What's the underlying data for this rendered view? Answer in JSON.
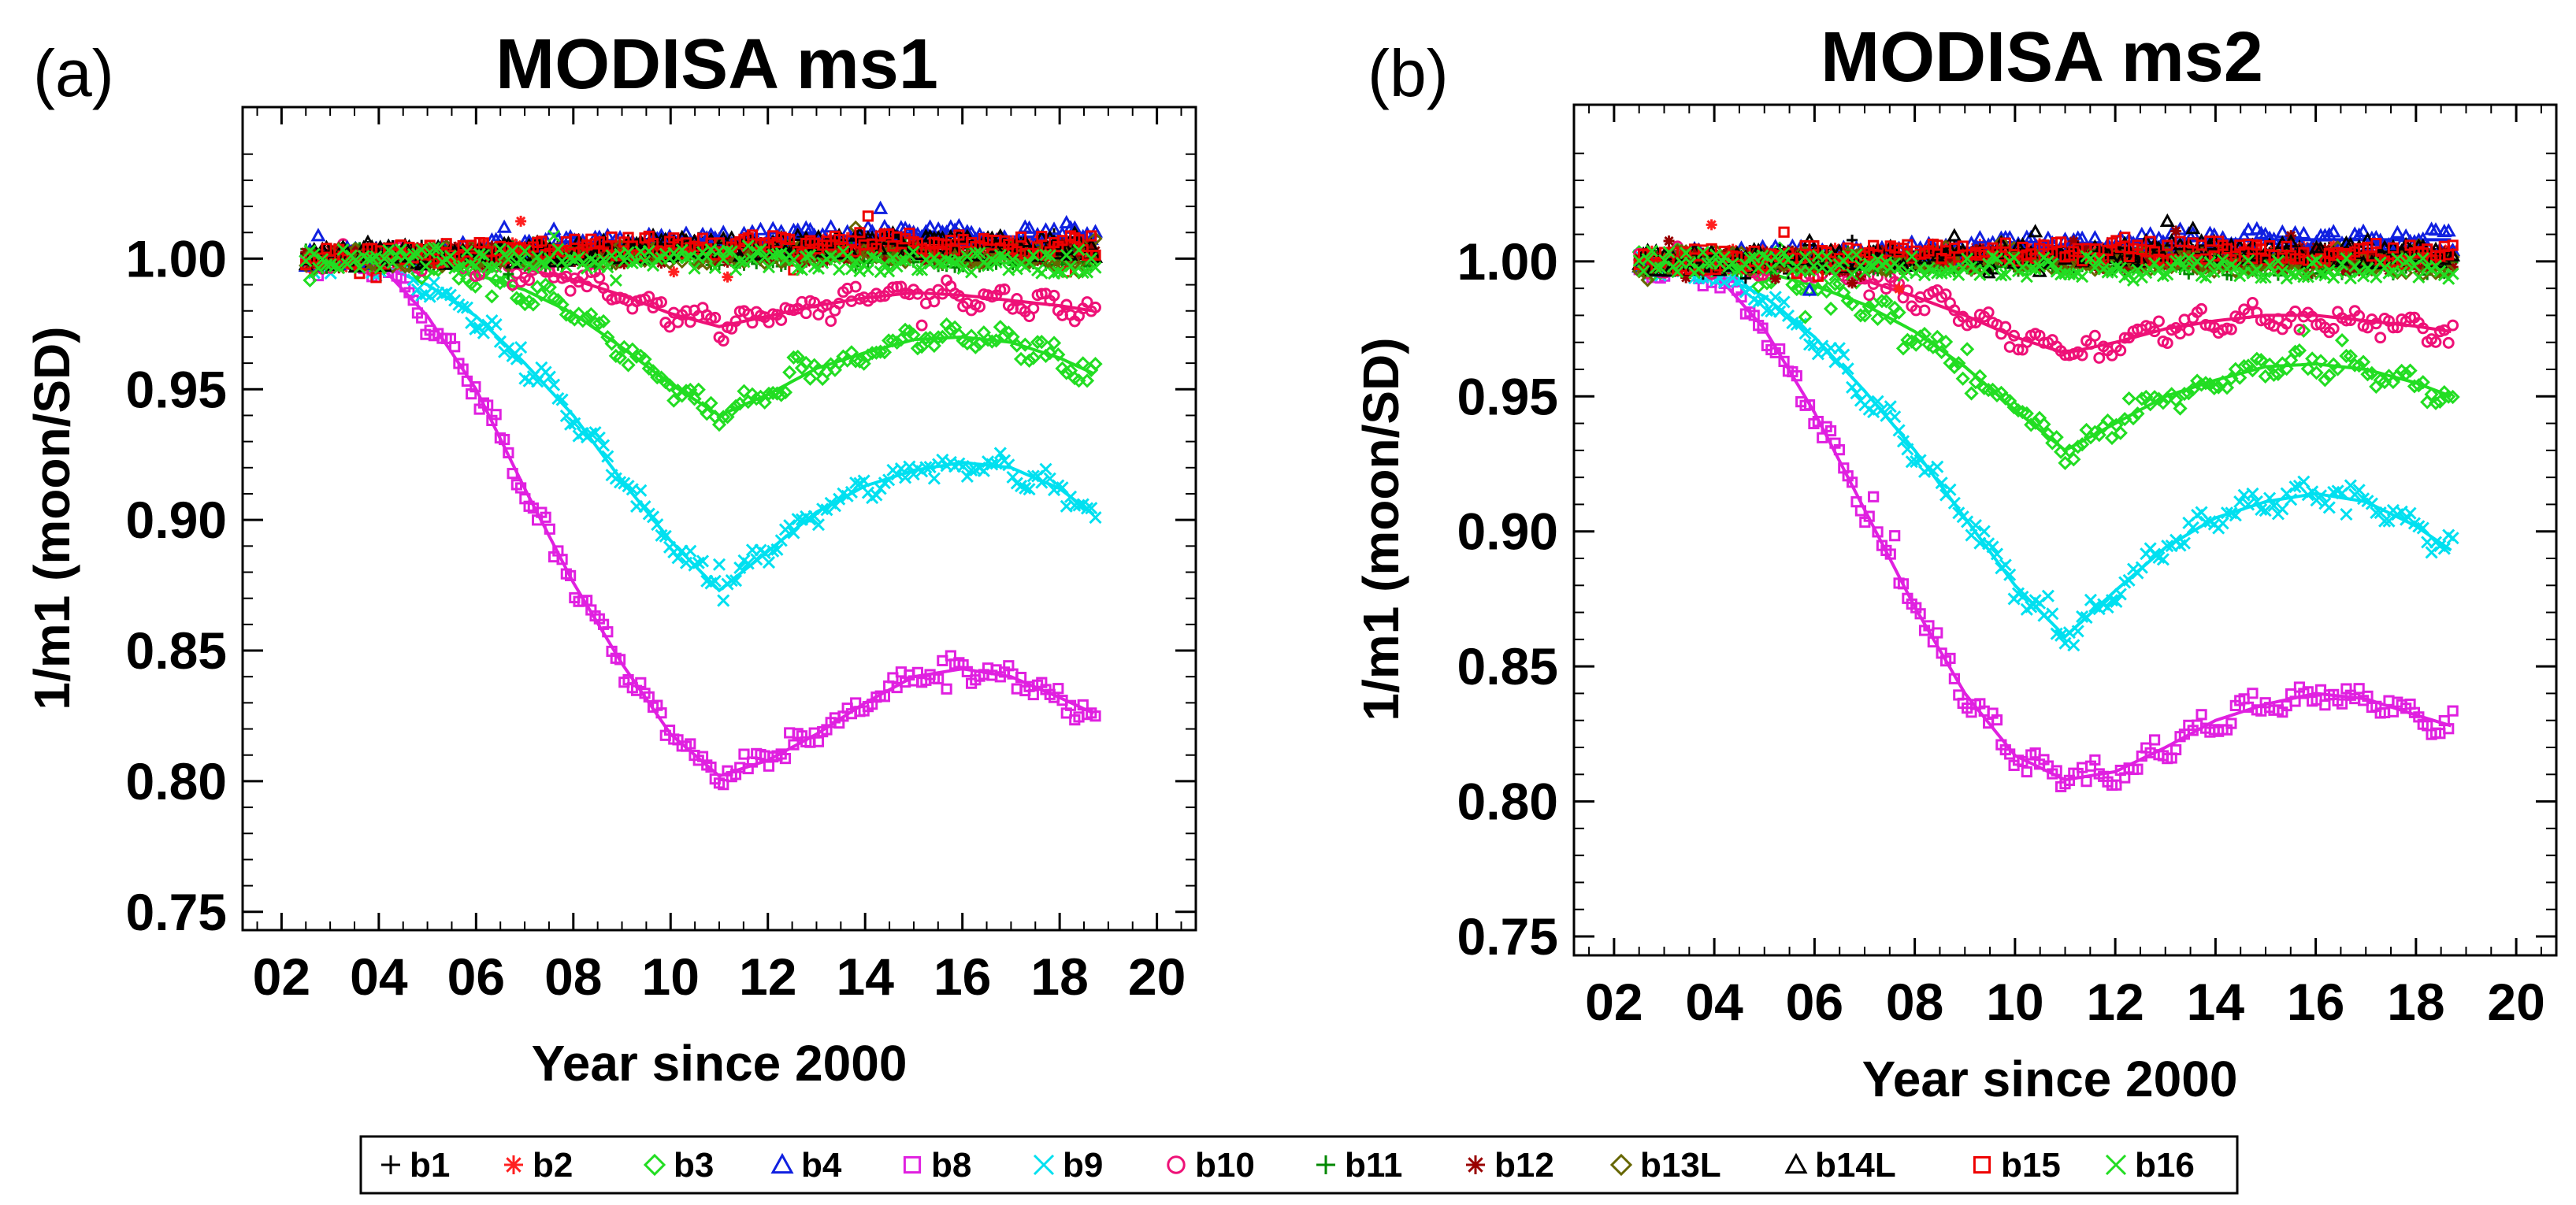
{
  "figure": {
    "panels": [
      "(a)",
      "(b)"
    ]
  },
  "chart_data": [
    {
      "type": "scatter",
      "title": "MODISA ms1",
      "panel_label": "(a)",
      "xlabel": "Year since 2000",
      "ylabel": "1/m1 (moon/SD)",
      "xlim": [
        1.2,
        20.8
      ],
      "ylim": [
        0.743,
        1.058
      ],
      "xticks": [
        2,
        4,
        6,
        8,
        10,
        12,
        14,
        16,
        18,
        20
      ],
      "xtick_labels": [
        "02",
        "04",
        "06",
        "08",
        "10",
        "12",
        "14",
        "16",
        "18",
        "20"
      ],
      "yticks": [
        0.75,
        0.8,
        0.85,
        0.9,
        0.95,
        1.0
      ],
      "ytick_labels": [
        "0.75",
        "0.80",
        "0.85",
        "0.90",
        "0.95",
        "1.00"
      ],
      "series": [
        {
          "name": "b8",
          "color": "#e020e0",
          "marker": "square",
          "x": [
            2.5,
            4,
            5,
            6,
            7,
            8,
            9,
            10,
            11,
            12,
            13,
            14,
            15,
            16,
            17,
            18,
            18.7
          ],
          "y": [
            0.998,
            0.998,
            0.978,
            0.95,
            0.912,
            0.876,
            0.845,
            0.818,
            0.802,
            0.808,
            0.818,
            0.83,
            0.84,
            0.843,
            0.84,
            0.832,
            0.826
          ]
        },
        {
          "name": "b9",
          "color": "#00e0f0",
          "marker": "x",
          "x": [
            2.5,
            4,
            5,
            6,
            7,
            8,
            9,
            10,
            11,
            12,
            13,
            14,
            15,
            16,
            17,
            18,
            18.7
          ],
          "y": [
            0.999,
            0.998,
            0.99,
            0.978,
            0.96,
            0.94,
            0.915,
            0.892,
            0.873,
            0.888,
            0.903,
            0.913,
            0.919,
            0.922,
            0.92,
            0.912,
            0.902
          ]
        },
        {
          "name": "b3",
          "color": "#22dd22",
          "marker": "diamond",
          "x": [
            2.5,
            4,
            5,
            6,
            7,
            8,
            9,
            10,
            11,
            12,
            13,
            14,
            15,
            16,
            17,
            18,
            18.7
          ],
          "y": [
            1.0,
            1.0,
            0.998,
            0.994,
            0.988,
            0.979,
            0.966,
            0.952,
            0.94,
            0.948,
            0.958,
            0.964,
            0.969,
            0.97,
            0.968,
            0.962,
            0.956
          ]
        },
        {
          "name": "b10",
          "color": "#ee1177",
          "marker": "circle",
          "x": [
            2.5,
            4,
            5,
            6,
            7,
            8,
            9,
            10,
            11,
            12,
            13,
            14,
            15,
            16,
            17,
            18,
            18.7
          ],
          "y": [
            1.0,
            1.001,
            1.0,
            0.999,
            0.996,
            0.992,
            0.986,
            0.979,
            0.974,
            0.978,
            0.982,
            0.985,
            0.987,
            0.986,
            0.984,
            0.982,
            0.98
          ]
        },
        {
          "name": "b1",
          "color": "#000000",
          "marker": "plus",
          "x": [
            2.5,
            6,
            10,
            14,
            18.7
          ],
          "y": [
            1.0,
            1.002,
            1.004,
            1.005,
            1.003
          ]
        },
        {
          "name": "b2",
          "color": "#ff2020",
          "marker": "asterisk",
          "x": [
            2.5,
            6,
            10,
            14,
            18.7
          ],
          "y": [
            1.0,
            1.002,
            1.004,
            1.005,
            1.004
          ]
        },
        {
          "name": "b4",
          "color": "#1020e0",
          "marker": "triangle",
          "x": [
            2.5,
            6,
            10,
            14,
            18.7
          ],
          "y": [
            1.0,
            1.003,
            1.006,
            1.009,
            1.008
          ]
        },
        {
          "name": "b11",
          "color": "#008800",
          "marker": "plus",
          "x": [
            2.5,
            6,
            10,
            14,
            18.7
          ],
          "y": [
            1.0,
            1.001,
            1.001,
            1.001,
            1.0
          ]
        },
        {
          "name": "b12",
          "color": "#990000",
          "marker": "asterisk",
          "x": [
            2.5,
            6,
            10,
            14,
            18.7
          ],
          "y": [
            1.0,
            1.001,
            1.002,
            1.002,
            1.002
          ]
        },
        {
          "name": "b13L",
          "color": "#666600",
          "marker": "diamond",
          "x": [
            2.5,
            6,
            10,
            14,
            18.7
          ],
          "y": [
            1.0,
            1.001,
            1.002,
            1.002,
            1.001
          ]
        },
        {
          "name": "b14L",
          "color": "#000000",
          "marker": "triangle",
          "x": [
            2.5,
            6,
            10,
            14,
            18.7
          ],
          "y": [
            1.0,
            1.002,
            1.004,
            1.006,
            1.004
          ]
        },
        {
          "name": "b15",
          "color": "#ee0000",
          "marker": "square",
          "x": [
            2.5,
            6,
            10,
            14,
            18.7
          ],
          "y": [
            1.0,
            1.003,
            1.005,
            1.006,
            1.005
          ]
        },
        {
          "name": "b16",
          "color": "#22dd22",
          "marker": "x",
          "x": [
            2.5,
            6,
            10,
            14,
            18.7
          ],
          "y": [
            1.0,
            1.0,
            1.0,
            0.999,
            0.998
          ]
        }
      ]
    },
    {
      "type": "scatter",
      "title": "MODISA ms2",
      "panel_label": "(b)",
      "xlabel": "Year since 2000",
      "ylabel": "1/m1 (moon/SD)",
      "xlim": [
        1.2,
        20.8
      ],
      "ylim": [
        0.743,
        1.058
      ],
      "xticks": [
        2,
        4,
        6,
        8,
        10,
        12,
        14,
        16,
        18,
        20
      ],
      "xtick_labels": [
        "02",
        "04",
        "06",
        "08",
        "10",
        "12",
        "14",
        "16",
        "18",
        "20"
      ],
      "yticks": [
        0.75,
        0.8,
        0.85,
        0.9,
        0.95,
        1.0
      ],
      "ytick_labels": [
        "0.75",
        "0.80",
        "0.85",
        "0.90",
        "0.95",
        "1.00"
      ],
      "series": [
        {
          "name": "b8",
          "color": "#e020e0",
          "marker": "square",
          "x": [
            2.5,
            4,
            5,
            6,
            7,
            8,
            9,
            10,
            11,
            12,
            13,
            14,
            15,
            16,
            17,
            18,
            18.7
          ],
          "y": [
            0.998,
            0.996,
            0.975,
            0.944,
            0.908,
            0.872,
            0.84,
            0.817,
            0.808,
            0.811,
            0.82,
            0.83,
            0.836,
            0.84,
            0.838,
            0.832,
            0.828
          ]
        },
        {
          "name": "b9",
          "color": "#00e0f0",
          "marker": "x",
          "x": [
            2.5,
            4,
            5,
            6,
            7,
            8,
            9,
            10,
            11,
            12,
            13,
            14,
            15,
            16,
            17,
            18,
            18.7
          ],
          "y": [
            0.999,
            0.996,
            0.987,
            0.972,
            0.952,
            0.93,
            0.905,
            0.88,
            0.861,
            0.878,
            0.894,
            0.905,
            0.911,
            0.914,
            0.911,
            0.902,
            0.893
          ]
        },
        {
          "name": "b3",
          "color": "#22dd22",
          "marker": "diamond",
          "x": [
            2.5,
            4,
            5,
            6,
            7,
            8,
            9,
            10,
            11,
            12,
            13,
            14,
            15,
            16,
            17,
            18,
            18.7
          ],
          "y": [
            1.0,
            0.999,
            0.996,
            0.991,
            0.984,
            0.974,
            0.961,
            0.945,
            0.93,
            0.94,
            0.95,
            0.956,
            0.961,
            0.962,
            0.96,
            0.955,
            0.95
          ]
        },
        {
          "name": "b10",
          "color": "#ee1177",
          "marker": "circle",
          "x": [
            2.5,
            4,
            5,
            6,
            7,
            8,
            9,
            10,
            11,
            12,
            13,
            14,
            15,
            16,
            17,
            18,
            18.7
          ],
          "y": [
            1.0,
            1.0,
            0.999,
            0.997,
            0.993,
            0.987,
            0.98,
            0.972,
            0.966,
            0.97,
            0.975,
            0.978,
            0.98,
            0.98,
            0.978,
            0.976,
            0.974
          ]
        },
        {
          "name": "b1",
          "color": "#000000",
          "marker": "plus",
          "x": [
            2.5,
            6,
            10,
            14,
            18.7
          ],
          "y": [
            1.0,
            1.001,
            1.003,
            1.003,
            1.001
          ]
        },
        {
          "name": "b2",
          "color": "#ff2020",
          "marker": "asterisk",
          "x": [
            2.5,
            6,
            10,
            14,
            18.7
          ],
          "y": [
            1.0,
            1.001,
            1.003,
            1.003,
            1.002
          ]
        },
        {
          "name": "b4",
          "color": "#1020e0",
          "marker": "triangle",
          "x": [
            2.5,
            6,
            10,
            14,
            18.7
          ],
          "y": [
            1.0,
            1.002,
            1.005,
            1.008,
            1.008
          ]
        },
        {
          "name": "b11",
          "color": "#008800",
          "marker": "plus",
          "x": [
            2.5,
            6,
            10,
            14,
            18.7
          ],
          "y": [
            1.0,
            1.0,
            1.0,
            0.999,
            0.998
          ]
        },
        {
          "name": "b12",
          "color": "#990000",
          "marker": "asterisk",
          "x": [
            2.5,
            6,
            10,
            14,
            18.7
          ],
          "y": [
            1.0,
            1.0,
            1.001,
            1.001,
            1.0
          ]
        },
        {
          "name": "b13L",
          "color": "#666600",
          "marker": "diamond",
          "x": [
            2.5,
            6,
            10,
            14,
            18.7
          ],
          "y": [
            1.0,
            1.0,
            1.001,
            1.0,
            0.999
          ]
        },
        {
          "name": "b14L",
          "color": "#000000",
          "marker": "triangle",
          "x": [
            2.5,
            6,
            10,
            14,
            18.7
          ],
          "y": [
            1.0,
            1.001,
            1.003,
            1.004,
            1.002
          ]
        },
        {
          "name": "b15",
          "color": "#ee0000",
          "marker": "square",
          "x": [
            2.5,
            6,
            10,
            14,
            18.7
          ],
          "y": [
            1.0,
            1.002,
            1.004,
            1.004,
            1.002
          ]
        },
        {
          "name": "b16",
          "color": "#22dd22",
          "marker": "x",
          "x": [
            2.5,
            6,
            10,
            14,
            18.7
          ],
          "y": [
            1.0,
            0.999,
            0.998,
            0.998,
            0.997
          ]
        }
      ]
    }
  ],
  "legend": {
    "placement": "bottom-center",
    "items": [
      {
        "label": "b1",
        "color": "#000000",
        "marker": "plus"
      },
      {
        "label": "b2",
        "color": "#ff2020",
        "marker": "asterisk"
      },
      {
        "label": "b3",
        "color": "#22dd22",
        "marker": "diamond"
      },
      {
        "label": "b4",
        "color": "#1020e0",
        "marker": "triangle"
      },
      {
        "label": "b8",
        "color": "#e020e0",
        "marker": "square"
      },
      {
        "label": "b9",
        "color": "#00e0f0",
        "marker": "x"
      },
      {
        "label": "b10",
        "color": "#ee1177",
        "marker": "circle"
      },
      {
        "label": "b11",
        "color": "#008800",
        "marker": "plus"
      },
      {
        "label": "b12",
        "color": "#990000",
        "marker": "asterisk"
      },
      {
        "label": "b13L",
        "color": "#666600",
        "marker": "diamond"
      },
      {
        "label": "b14L",
        "color": "#000000",
        "marker": "triangle"
      },
      {
        "label": "b15",
        "color": "#ee0000",
        "marker": "square"
      },
      {
        "label": "b16",
        "color": "#22dd22",
        "marker": "x"
      }
    ]
  }
}
